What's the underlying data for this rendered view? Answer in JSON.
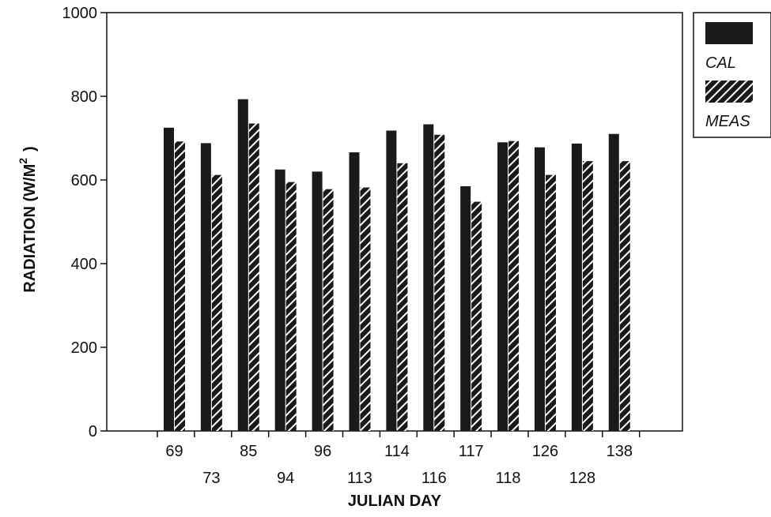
{
  "chart_data": {
    "type": "bar",
    "xlabel": "JULIAN DAY",
    "ylabel": "RADIATION (W/M",
    "ylabel_superscript": "2",
    "ylabel_close": ")",
    "ylim": [
      0,
      1000
    ],
    "yticks": [
      "0",
      "200",
      "400",
      "600",
      "800",
      "1000"
    ],
    "categories": [
      "69",
      "73",
      "85",
      "94",
      "96",
      "113",
      "114",
      "116",
      "117",
      "118",
      "126",
      "128",
      "138"
    ],
    "series": [
      {
        "name": "CAL",
        "pattern": "solid",
        "values": [
          725,
          688,
          793,
          625,
          620,
          666,
          718,
          733,
          585,
          690,
          678,
          687,
          710
        ]
      },
      {
        "name": "MEAS",
        "pattern": "hatched",
        "values": [
          692,
          612,
          735,
          595,
          578,
          582,
          640,
          708,
          548,
          693,
          612,
          645,
          645
        ]
      }
    ],
    "grid": false,
    "legend_position": "top-right, outside plot",
    "colors": {
      "bar": "#1a1a1a",
      "hatch_bg": "#1a1a1a",
      "hatch_line": "#ffffff",
      "axis": "#111111"
    }
  }
}
